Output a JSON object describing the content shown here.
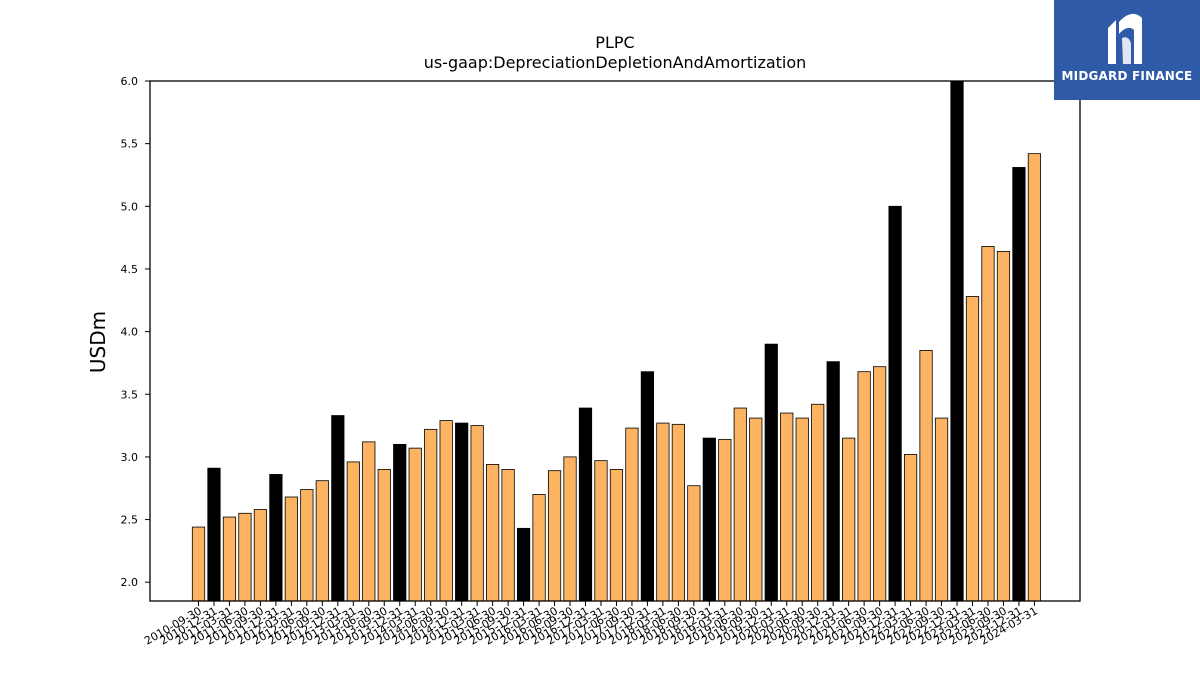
{
  "brand": {
    "name": "MIDGARD FINANCE",
    "color": "#2f5aa8"
  },
  "chart_data": {
    "type": "bar",
    "title": "PLPC",
    "subtitle": "us-gaap:DepreciationDepletionAndAmortization",
    "ylabel": "USDm",
    "xlabel": "",
    "ylim": [
      1.85,
      6.0
    ],
    "yticks": [
      "2.0",
      "2.5",
      "3.0",
      "3.5",
      "4.0",
      "4.5",
      "5.0",
      "5.5",
      "6.0"
    ],
    "colors": {
      "quarter": "#fdb462",
      "annual": "#000000",
      "edge": "#000000"
    },
    "categories": [
      "2010-09-30",
      "2010-12-31",
      "2011-03-31",
      "2011-06-30",
      "2011-09-30",
      "2011-12-31",
      "2012-03-31",
      "2012-06-30",
      "2012-09-30",
      "2012-12-31",
      "2013-03-31",
      "2013-06-30",
      "2013-09-30",
      "2013-12-31",
      "2014-03-31",
      "2014-06-30",
      "2014-09-30",
      "2014-12-31",
      "2015-03-31",
      "2015-06-30",
      "2015-09-30",
      "2015-12-31",
      "2016-03-31",
      "2016-06-30",
      "2016-09-30",
      "2016-12-31",
      "2017-03-31",
      "2017-06-30",
      "2017-09-30",
      "2017-12-31",
      "2018-03-31",
      "2018-06-30",
      "2018-09-30",
      "2018-12-31",
      "2019-03-31",
      "2019-06-30",
      "2019-09-30",
      "2019-12-31",
      "2020-03-31",
      "2020-06-30",
      "2020-09-30",
      "2020-12-31",
      "2021-03-31",
      "2021-06-30",
      "2021-09-30",
      "2021-12-31",
      "2022-03-31",
      "2022-06-30",
      "2022-09-30",
      "2022-12-31",
      "2023-03-31",
      "2023-06-30",
      "2023-09-30",
      "2023-12-31",
      "2024-03-31"
    ],
    "values": [
      2.44,
      2.91,
      2.52,
      2.55,
      2.58,
      2.86,
      2.68,
      2.74,
      2.81,
      3.33,
      2.96,
      3.12,
      2.9,
      3.1,
      3.07,
      3.22,
      3.29,
      3.27,
      3.25,
      2.94,
      2.9,
      2.43,
      2.7,
      2.89,
      3.0,
      3.39,
      2.97,
      2.9,
      3.23,
      3.68,
      3.27,
      3.26,
      2.77,
      3.15,
      3.14,
      3.39,
      3.31,
      3.9,
      3.35,
      3.31,
      3.42,
      3.76,
      3.15,
      3.68,
      3.72,
      5.0,
      3.02,
      3.85,
      3.31,
      6.0,
      4.28,
      4.68,
      4.64,
      5.31,
      5.42
    ],
    "annual_flags": [
      0,
      1,
      0,
      0,
      0,
      1,
      0,
      0,
      0,
      1,
      0,
      0,
      0,
      1,
      0,
      0,
      0,
      1,
      0,
      0,
      0,
      1,
      0,
      0,
      0,
      1,
      0,
      0,
      0,
      1,
      0,
      0,
      0,
      1,
      0,
      0,
      0,
      1,
      0,
      0,
      0,
      1,
      0,
      0,
      0,
      1,
      0,
      0,
      0,
      1,
      0,
      0,
      0,
      1,
      0
    ],
    "grid": false,
    "legend": "none"
  }
}
